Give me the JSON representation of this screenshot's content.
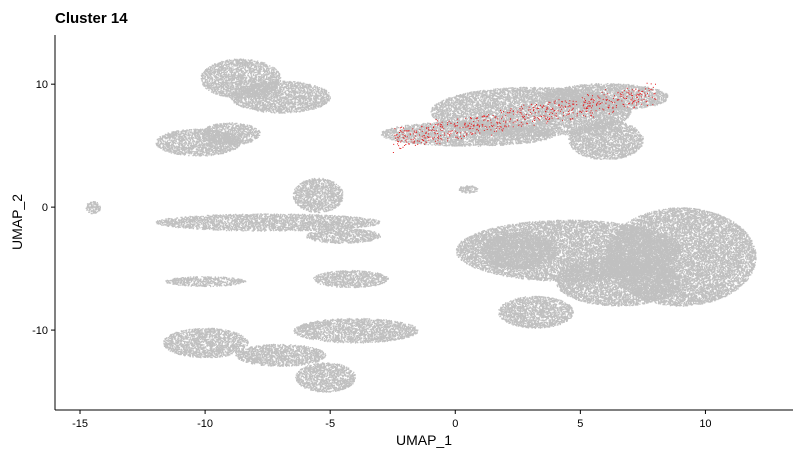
{
  "chart_data": {
    "type": "scatter",
    "title": "Cluster 14",
    "xlabel": "UMAP_1",
    "ylabel": "UMAP_2",
    "xlim": [
      -16,
      13.5
    ],
    "ylim": [
      -16.5,
      14
    ],
    "x_ticks": [
      -15,
      -10,
      -5,
      0,
      5,
      10
    ],
    "y_ticks": [
      -10,
      0,
      10
    ],
    "x_tick_labels": [
      "-15",
      "-10",
      "-5",
      "0",
      "5",
      "10"
    ],
    "y_tick_labels": [
      "-10",
      "0",
      "10"
    ],
    "grid": false,
    "legend": "none",
    "colors": {
      "background_cells": "#c0c0c0",
      "highlighted_cells": "#e41a1c"
    },
    "series": [
      {
        "role": "background",
        "note_regions": [
          {
            "cx": -8.6,
            "cy": 10.5,
            "rx": 1.6,
            "ry": 1.6
          },
          {
            "cx": -7.0,
            "cy": 9.0,
            "rx": 2.0,
            "ry": 1.3
          },
          {
            "cx": -10.3,
            "cy": 5.3,
            "rx": 1.7,
            "ry": 1.1
          },
          {
            "cx": -9.0,
            "cy": 6.0,
            "rx": 1.2,
            "ry": 0.9
          },
          {
            "cx": -14.5,
            "cy": 0.0,
            "rx": 0.3,
            "ry": 0.5
          },
          {
            "cx": -7.5,
            "cy": -1.2,
            "rx": 4.5,
            "ry": 0.7
          },
          {
            "cx": -5.5,
            "cy": 1.0,
            "rx": 1.0,
            "ry": 1.4
          },
          {
            "cx": -4.5,
            "cy": -2.3,
            "rx": 1.5,
            "ry": 0.6
          },
          {
            "cx": -10.0,
            "cy": -6.0,
            "rx": 1.6,
            "ry": 0.4
          },
          {
            "cx": -10.0,
            "cy": -11.0,
            "rx": 1.7,
            "ry": 1.2
          },
          {
            "cx": -7.0,
            "cy": -12.0,
            "rx": 1.8,
            "ry": 0.9
          },
          {
            "cx": -5.2,
            "cy": -13.8,
            "rx": 1.2,
            "ry": 1.2
          },
          {
            "cx": -4.0,
            "cy": -10.0,
            "rx": 2.5,
            "ry": 1.0
          },
          {
            "cx": -4.2,
            "cy": -5.8,
            "rx": 1.5,
            "ry": 0.7
          },
          {
            "cx": 3.0,
            "cy": 7.8,
            "rx": 4.0,
            "ry": 2.0
          },
          {
            "cx": 6.0,
            "cy": 9.0,
            "rx": 2.5,
            "ry": 1.1
          },
          {
            "cx": 0.5,
            "cy": 6.0,
            "rx": 3.5,
            "ry": 1.0
          },
          {
            "cx": 6.0,
            "cy": 5.5,
            "rx": 1.5,
            "ry": 1.6
          },
          {
            "cx": 0.5,
            "cy": 1.5,
            "rx": 0.4,
            "ry": 0.3
          },
          {
            "cx": 4.5,
            "cy": -3.5,
            "rx": 4.5,
            "ry": 2.5
          },
          {
            "cx": 9.0,
            "cy": -4.0,
            "rx": 3.0,
            "ry": 4.0
          },
          {
            "cx": 3.2,
            "cy": -8.5,
            "rx": 1.5,
            "ry": 1.3
          },
          {
            "cx": 6.5,
            "cy": -6.0,
            "rx": 2.5,
            "ry": 2.0
          },
          {
            "cx": 2.5,
            "cy": -3.5,
            "rx": 1.5,
            "ry": 1.5
          }
        ]
      },
      {
        "role": "highlighted",
        "band": {
          "x0": -2.5,
          "y0": 5.5,
          "x1": 8.0,
          "y1": 9.3,
          "spread": 0.9
        }
      }
    ]
  }
}
